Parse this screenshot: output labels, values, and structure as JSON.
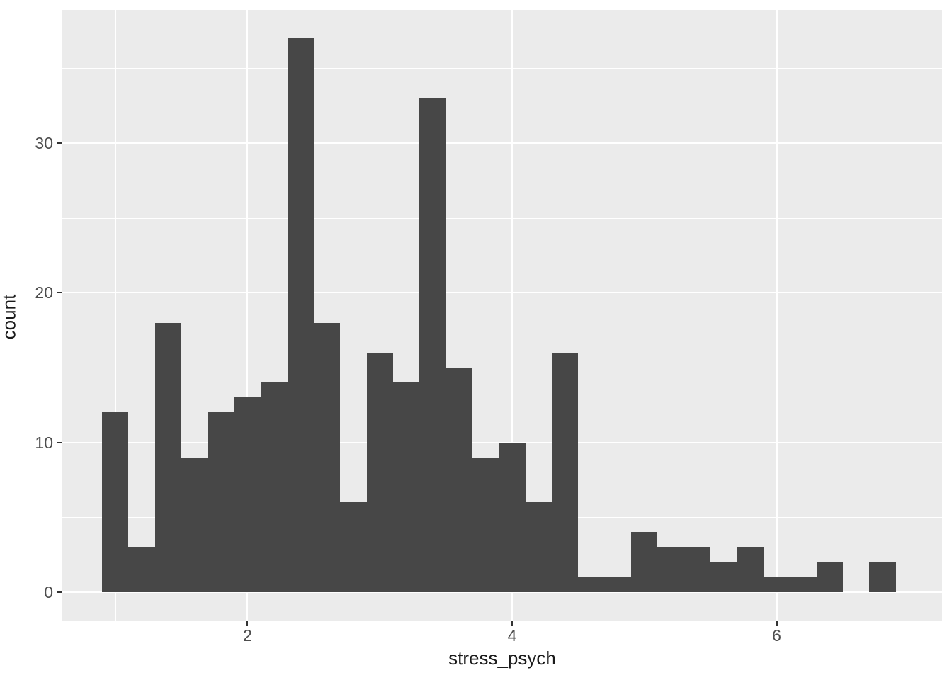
{
  "figure": {
    "background_color": "#FFFFFF",
    "panel_background_color": "#EBEBEB",
    "gridline_color": "#FFFFFF",
    "bar_color": "#474747",
    "tick_mark_color": "#333333",
    "tick_label_color": "#4D4D4D",
    "axis_title_color": "#1A1A1A"
  },
  "chart_data": {
    "type": "bar",
    "subtype": "histogram",
    "title": "",
    "xlabel": "stress_psych",
    "ylabel": "count",
    "bin_start": 0.9,
    "bin_width": 0.2,
    "bin_centers": [
      1.0,
      1.2,
      1.4,
      1.6,
      1.8,
      2.0,
      2.2,
      2.4,
      2.6,
      2.8,
      3.0,
      3.2,
      3.4,
      3.6,
      3.8,
      4.0,
      4.2,
      4.4,
      4.6,
      4.8,
      5.0,
      5.2,
      5.4,
      5.6,
      5.8,
      6.0,
      6.2,
      6.4,
      6.6,
      6.8
    ],
    "counts": [
      12,
      3,
      18,
      9,
      12,
      13,
      14,
      37,
      18,
      6,
      16,
      14,
      33,
      15,
      9,
      10,
      6,
      16,
      1,
      1,
      4,
      3,
      3,
      2,
      3,
      1,
      1,
      2,
      0,
      2
    ],
    "total_n": 284,
    "x_major_ticks": [
      2,
      4,
      6
    ],
    "x_minor_gridlines": [
      1,
      3,
      5,
      7
    ],
    "y_major_ticks": [
      0,
      10,
      20,
      30
    ],
    "y_minor_gridlines": [
      5,
      15,
      25,
      35
    ],
    "xlim": [
      0.6,
      7.25
    ],
    "ylim": [
      -1.9,
      38.9
    ],
    "grid": "white major + minor gridlines on grey panel",
    "legend_position": "none"
  }
}
